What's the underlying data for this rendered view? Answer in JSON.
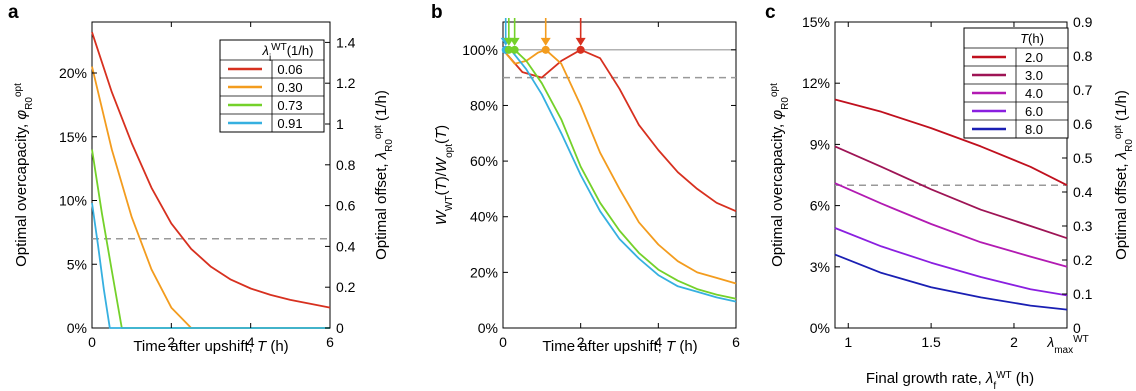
{
  "chart_data": [
    {
      "type": "line",
      "panel_label": "a",
      "xlabel": "Time after upshift, T (h)",
      "ylabel": "Optimal overcapacity, φ_R0^opt",
      "ylabel2": "Optimal offset, λ_R0^opt (1/h)",
      "xlim": [
        0,
        6
      ],
      "ylim": [
        0,
        0.24
      ],
      "y2lim": [
        0,
        1.5
      ],
      "xticks": [
        0,
        2,
        4,
        6
      ],
      "yticks": [
        0,
        0.05,
        0.1,
        0.15,
        0.2
      ],
      "ytick_labels": [
        "0%",
        "5%",
        "10%",
        "15%",
        "20%"
      ],
      "y2ticks": [
        0,
        0.2,
        0.4,
        0.6,
        0.8,
        1,
        1.2,
        1.4
      ],
      "y2tick_labels": [
        "0",
        "0.2",
        "0.4",
        "0.6",
        "0.8",
        "1",
        "1.2",
        "1.4"
      ],
      "legend_title": "λ_i^WT(1/h)",
      "legend_position": "top-right",
      "dashed_line_y": 0.07,
      "series": [
        {
          "name": "0.06",
          "color": "#d7301f",
          "x": [
            0,
            0.5,
            1,
            1.5,
            2,
            2.5,
            3,
            3.5,
            4,
            4.5,
            5,
            5.5,
            6
          ],
          "y": [
            0.232,
            0.185,
            0.145,
            0.11,
            0.082,
            0.062,
            0.048,
            0.038,
            0.031,
            0.026,
            0.022,
            0.019,
            0.016
          ]
        },
        {
          "name": "0.30",
          "color": "#f39c1e",
          "x": [
            0,
            0.5,
            1,
            1.5,
            2,
            2.5,
            6
          ],
          "y": [
            0.205,
            0.14,
            0.087,
            0.046,
            0.016,
            0,
            0
          ]
        },
        {
          "name": "0.73",
          "color": "#74d12a",
          "x": [
            0,
            0.25,
            0.5,
            0.75,
            6
          ],
          "y": [
            0.14,
            0.09,
            0.045,
            0,
            0
          ]
        },
        {
          "name": "0.91",
          "color": "#36b0e0",
          "x": [
            0,
            0.15,
            0.3,
            0.45,
            6
          ],
          "y": [
            0.098,
            0.065,
            0.03,
            0,
            0
          ]
        }
      ]
    },
    {
      "type": "line",
      "panel_label": "b",
      "xlabel": "Time after upshift, T (h)",
      "ylabel": "W_WT(T)/W_opt(T)",
      "xlim": [
        0,
        6
      ],
      "ylim": [
        0,
        1.1
      ],
      "xticks": [
        0,
        2,
        4,
        6
      ],
      "yticks": [
        0,
        0.2,
        0.4,
        0.6,
        0.8,
        1.0
      ],
      "ytick_labels": [
        "0%",
        "20%",
        "40%",
        "60%",
        "80%",
        "100%"
      ],
      "hline_solid_y": 1.0,
      "hline_dashed_y": 0.9,
      "markers_x": [
        0.07,
        0.15,
        0.3,
        1.1,
        2.0
      ],
      "series": [
        {
          "name": "0.06",
          "color": "#d7301f",
          "x": [
            0,
            0.5,
            1,
            1.5,
            2,
            2.5,
            3,
            3.5,
            4,
            4.5,
            5,
            5.5,
            6
          ],
          "y": [
            1.0,
            0.92,
            0.9,
            0.96,
            1.0,
            0.97,
            0.86,
            0.73,
            0.64,
            0.56,
            0.5,
            0.45,
            0.42
          ]
        },
        {
          "name": "0.30",
          "color": "#f39c1e",
          "x": [
            0,
            0.3,
            0.6,
            0.9,
            1.1,
            1.5,
            2,
            2.5,
            3,
            3.5,
            4,
            4.5,
            5,
            5.5,
            6
          ],
          "y": [
            1.0,
            0.95,
            0.96,
            0.99,
            1.0,
            0.95,
            0.8,
            0.63,
            0.5,
            0.38,
            0.3,
            0.24,
            0.2,
            0.18,
            0.16
          ]
        },
        {
          "name": "0.73",
          "color": "#74d12a",
          "x": [
            0,
            0.3,
            0.6,
            1,
            1.5,
            2,
            2.5,
            3,
            3.5,
            4,
            4.5,
            5,
            5.5,
            6
          ],
          "y": [
            1.0,
            1.0,
            0.96,
            0.88,
            0.75,
            0.58,
            0.45,
            0.35,
            0.27,
            0.21,
            0.17,
            0.14,
            0.12,
            0.105
          ]
        },
        {
          "name": "0.91",
          "color": "#36b0e0",
          "x": [
            0,
            0.2,
            0.6,
            1,
            1.5,
            2,
            2.5,
            3,
            3.5,
            4,
            4.5,
            5,
            5.5,
            6
          ],
          "y": [
            1.0,
            1.0,
            0.93,
            0.84,
            0.7,
            0.55,
            0.42,
            0.32,
            0.25,
            0.19,
            0.15,
            0.13,
            0.11,
            0.095
          ]
        }
      ]
    },
    {
      "type": "line",
      "panel_label": "c",
      "xlabel": "Final growth rate, λ_f^WT (h)",
      "ylabel": "Optimal overcapacity, φ_R0^opt",
      "ylabel2": "Optimal offset, λ_R0^opt (1/h)",
      "xlim": [
        0.92,
        2.32
      ],
      "ylim": [
        0,
        0.15
      ],
      "y2lim": [
        0,
        0.9
      ],
      "xticks": [
        1,
        1.5,
        2
      ],
      "xtick_labels": [
        "1",
        "1.5",
        "2"
      ],
      "x_end_label": "λ_max^WT",
      "yticks": [
        0,
        0.03,
        0.06,
        0.09,
        0.12,
        0.15
      ],
      "ytick_labels": [
        "0%",
        "3%",
        "6%",
        "9%",
        "12%",
        "15%"
      ],
      "y2ticks": [
        0,
        0.1,
        0.2,
        0.3,
        0.4,
        0.5,
        0.6,
        0.7,
        0.8,
        0.9
      ],
      "y2tick_labels": [
        "0",
        "0.1",
        "0.2",
        "0.3",
        "0.4",
        "0.5",
        "0.6",
        "0.7",
        "0.8",
        "0.9"
      ],
      "legend_title": "T(h)",
      "legend_position": "top-right",
      "dashed_line_y": 0.07,
      "series": [
        {
          "name": "2.0",
          "color": "#c0101e",
          "x": [
            0.92,
            1.2,
            1.5,
            1.8,
            2.1,
            2.32
          ],
          "y": [
            0.112,
            0.106,
            0.098,
            0.089,
            0.079,
            0.07
          ]
        },
        {
          "name": "3.0",
          "color": "#9e1455",
          "x": [
            0.92,
            1.2,
            1.5,
            1.8,
            2.1,
            2.32
          ],
          "y": [
            0.089,
            0.079,
            0.068,
            0.058,
            0.05,
            0.044
          ]
        },
        {
          "name": "4.0",
          "color": "#b21ab2",
          "x": [
            0.92,
            1.2,
            1.5,
            1.8,
            2.1,
            2.32
          ],
          "y": [
            0.071,
            0.061,
            0.051,
            0.042,
            0.035,
            0.03
          ]
        },
        {
          "name": "6.0",
          "color": "#8a1fe0",
          "x": [
            0.92,
            1.2,
            1.5,
            1.8,
            2.1,
            2.32
          ],
          "y": [
            0.049,
            0.04,
            0.032,
            0.025,
            0.019,
            0.016
          ]
        },
        {
          "name": "8.0",
          "color": "#1a1fb3",
          "x": [
            0.92,
            1.2,
            1.5,
            1.8,
            2.1,
            2.32
          ],
          "y": [
            0.036,
            0.027,
            0.02,
            0.015,
            0.011,
            0.009
          ]
        }
      ]
    }
  ]
}
